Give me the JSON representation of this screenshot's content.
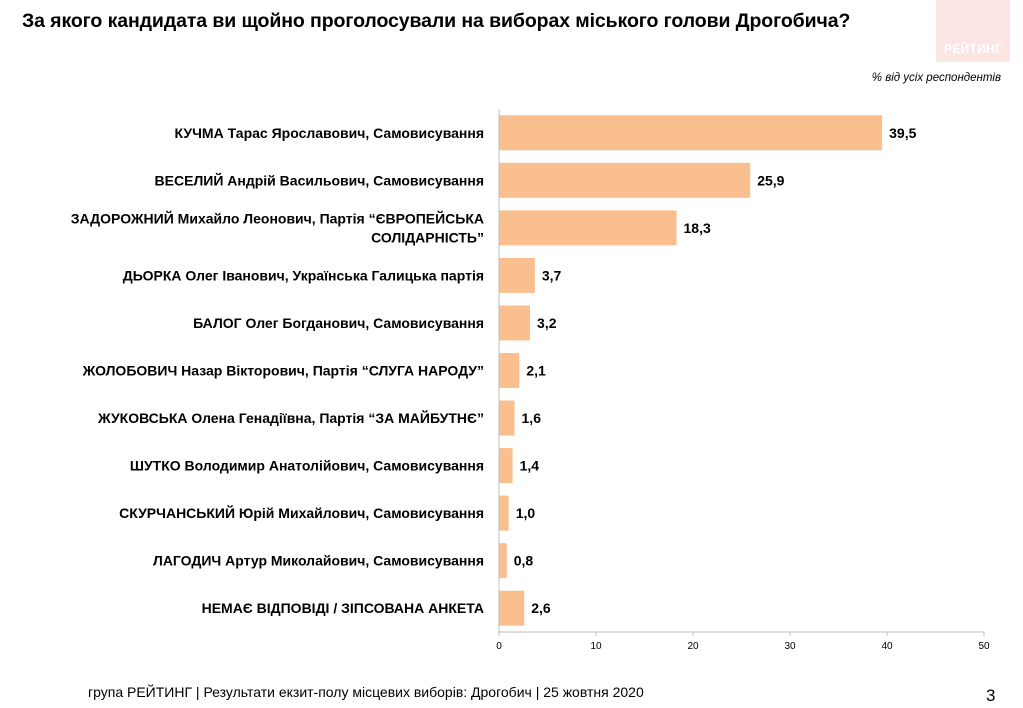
{
  "slide": {
    "title": "За якого кандидата ви щойно проголосували на виборах міського голови Дрогобича?",
    "units_note": "% від усіх респондентів",
    "logo_text": "РЕЙТИНГ",
    "footer": "група РЕЙТИНГ | Результати екзит-полу місцевих виборів: Дрогобич | 25 жовтня 2020",
    "page_number": "3"
  },
  "colors": {
    "bar": "#fabf8f",
    "logo_bg": "#fce6e4",
    "axis": "#bfbfbf"
  },
  "chart_data": {
    "type": "bar",
    "orientation": "horizontal",
    "categories": [
      "КУЧМА Тарас Ярославович, Самовисування",
      "ВЕСЕЛИЙ Андрій Васильович, Самовисування",
      "ЗАДОРОЖНИЙ Михайло Леонович, Партія “ЄВРОПЕЙСЬКА СОЛІДАРНІСТЬ”",
      "ДЬОРКА Олег Іванович, Українська Галицька партія",
      "БАЛОГ Олег Богданович, Самовисування",
      "ЖОЛОБОВИЧ Назар Вікторович, Партія “СЛУГА НАРОДУ”",
      "ЖУКОВСЬКА Олена Генадіївна, Партія “ЗА МАЙБУТНЄ”",
      "ШУТКО Володимир Анатолійович, Самовисування",
      "СКУРЧАНСЬКИЙ Юрій Михайлович, Самовисування",
      "ЛАГОДИЧ Артур Миколайович, Самовисування",
      "НЕМАЄ ВІДПОВІДІ / ЗІПСОВАНА АНКЕТА"
    ],
    "category_lines": [
      [
        "КУЧМА Тарас Ярославович, Самовисування"
      ],
      [
        "ВЕСЕЛИЙ Андрій Васильович, Самовисування"
      ],
      [
        "ЗАДОРОЖНИЙ Михайло Леонович, Партія “ЄВРОПЕЙСЬКА",
        "СОЛІДАРНІСТЬ”"
      ],
      [
        "ДЬОРКА Олег Іванович, Українська Галицька партія"
      ],
      [
        "БАЛОГ Олег Богданович, Самовисування"
      ],
      [
        "ЖОЛОБОВИЧ Назар Вікторович, Партія “СЛУГА НАРОДУ”"
      ],
      [
        "ЖУКОВСЬКА Олена Генадіївна, Партія “ЗА МАЙБУТНЄ”"
      ],
      [
        "ШУТКО Володимир Анатолійович, Самовисування"
      ],
      [
        "СКУРЧАНСЬКИЙ Юрій Михайлович, Самовисування"
      ],
      [
        "ЛАГОДИЧ Артур Миколайович, Самовисування"
      ],
      [
        "НЕМАЄ ВІДПОВІДІ / ЗІПСОВАНА АНКЕТА"
      ]
    ],
    "values": [
      39.5,
      25.9,
      18.3,
      3.7,
      3.2,
      2.1,
      1.6,
      1.4,
      1.0,
      0.8,
      2.6
    ],
    "value_labels": [
      "39,5",
      "25,9",
      "18,3",
      "3,7",
      "3,2",
      "2,1",
      "1,6",
      "1,4",
      "1,0",
      "0,8",
      "2,6"
    ],
    "xlim": [
      0,
      50
    ],
    "xticks": [
      0,
      10,
      20,
      30,
      40,
      50
    ],
    "xtick_labels": [
      "0",
      "10",
      "20",
      "30",
      "40",
      "50"
    ],
    "grid": false,
    "legend": "none"
  }
}
